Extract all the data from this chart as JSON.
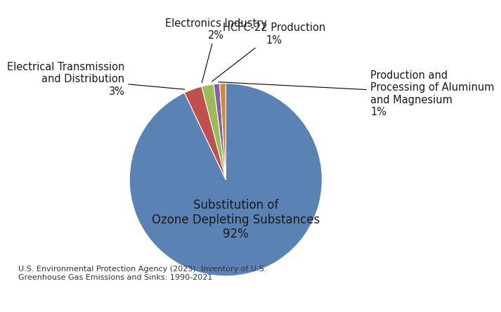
{
  "slices": [
    {
      "label": "Substitution of\nOzone Depleting Substances\n92%",
      "value": 92,
      "color": "#5b82b5"
    },
    {
      "label": "Electrical Transmission\nand Distribution\n3%",
      "value": 3,
      "color": "#c0504d"
    },
    {
      "label": "Electronics Industry\n2%",
      "value": 2,
      "color": "#9bbb59"
    },
    {
      "label": "HCFC-22 Production\n1%",
      "value": 1,
      "color": "#8064a2"
    },
    {
      "label": "Production and\nProcessing of Aluminum\nand Magnesium\n1%",
      "value": 1,
      "color": "#d4863b"
    }
  ],
  "inner_label_color": "#1a1a1a",
  "external_label_color": "#1a1a1a",
  "footnote": "U.S. Environmental Protection Agency (2023). Inventory of U.S.\nGreenhouse Gas Emissions and Sinks: 1990-2021",
  "footnote_color": "#333333",
  "background_color": "#ffffff",
  "label_fontsize": 10.5,
  "inner_fontsize": 12
}
